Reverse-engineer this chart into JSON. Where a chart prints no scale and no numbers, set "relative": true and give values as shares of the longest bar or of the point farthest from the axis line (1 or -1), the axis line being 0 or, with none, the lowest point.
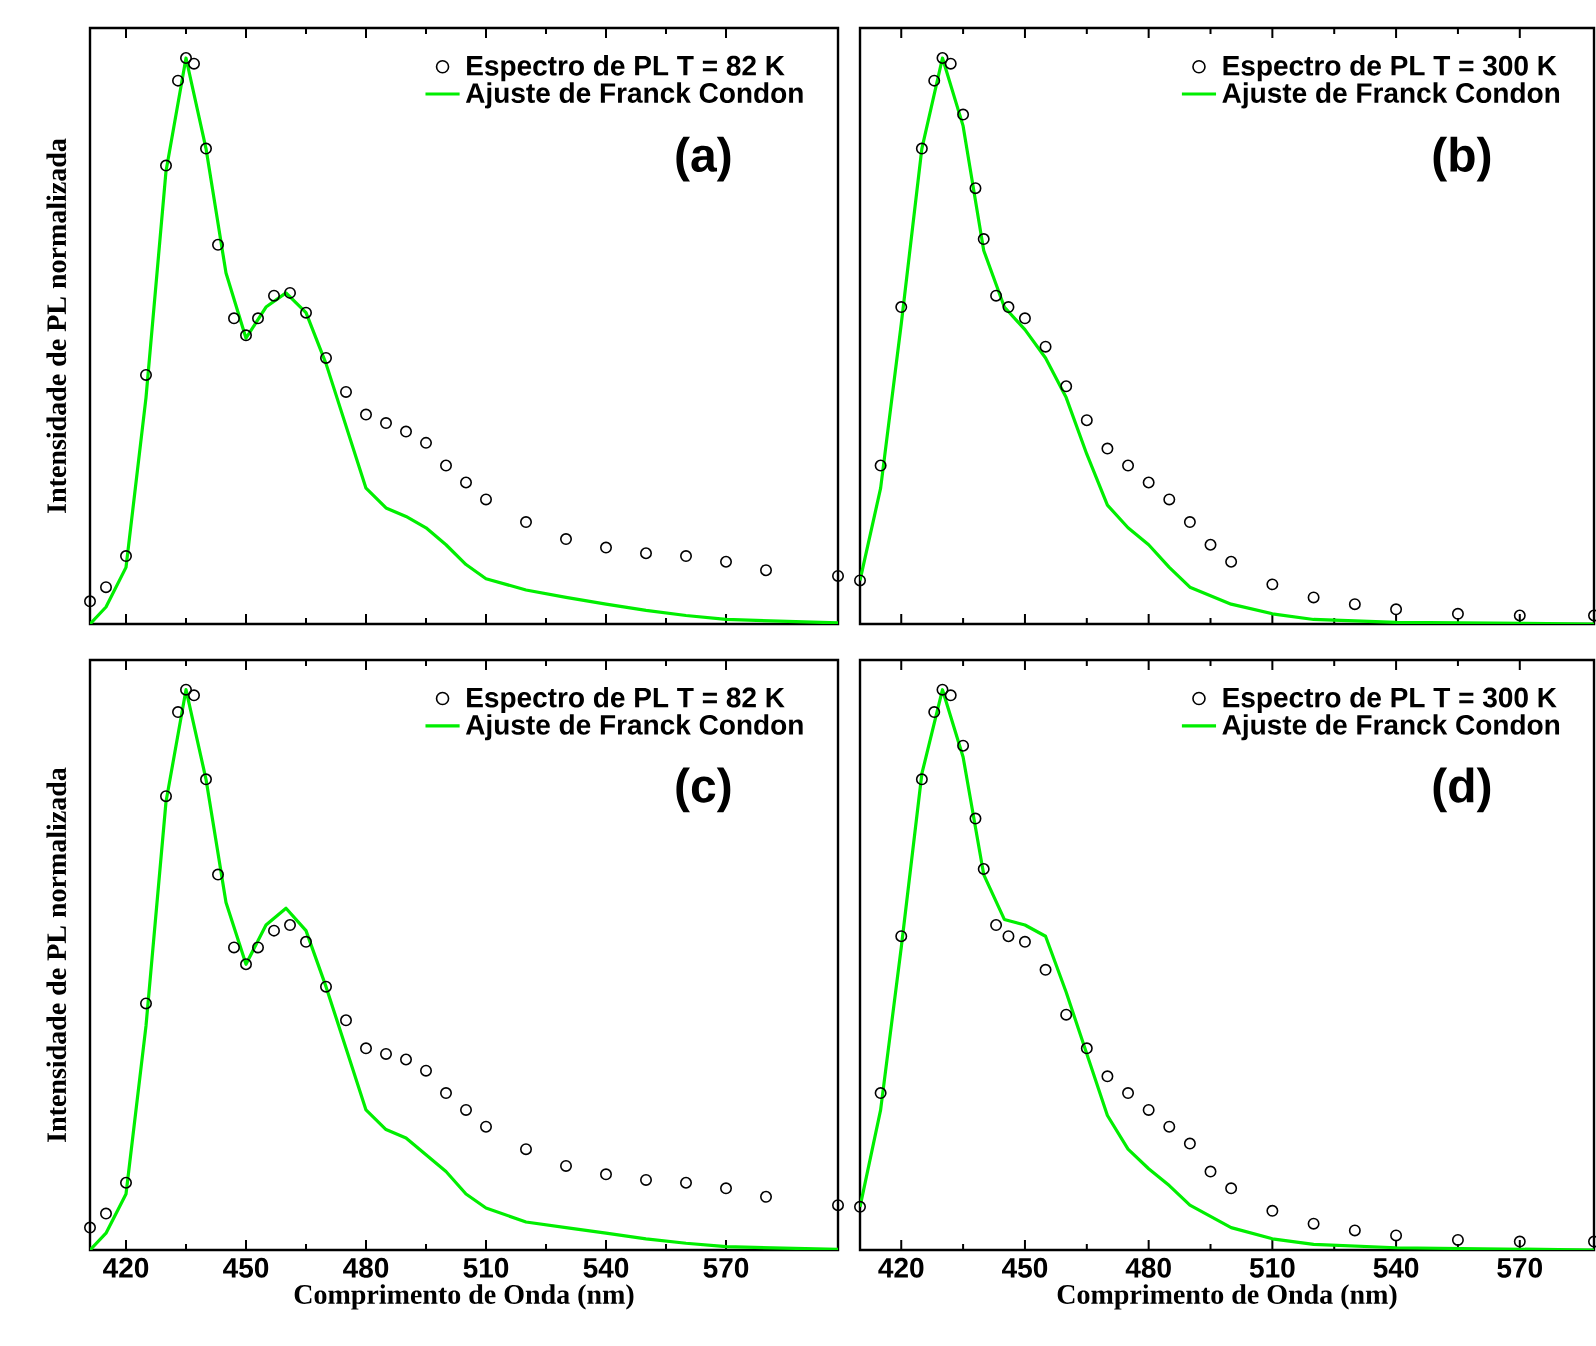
{
  "chart_data": [
    {
      "type": "line",
      "relative": true,
      "xlim": [
        411,
        598
      ],
      "xticks": [
        420,
        450,
        480,
        510,
        540,
        570
      ],
      "ylabel": "Intensidade de PL normalizada",
      "tick_labels": false,
      "legend": "top right",
      "annotations": [
        "(a)"
      ],
      "series": [
        {
          "name": "Espectro de PL  T = 82 K",
          "type": "scatter",
          "marker": "circle",
          "color": "#000000",
          "x": [
            411,
            415,
            420,
            425,
            430,
            433,
            435,
            437,
            440,
            443,
            447,
            450,
            453,
            457,
            461,
            465,
            470,
            475,
            480,
            485,
            490,
            495,
            500,
            505,
            510,
            520,
            530,
            540,
            550,
            560,
            570,
            580,
            598
          ],
          "values": [
            0.04,
            0.065,
            0.12,
            0.44,
            0.81,
            0.96,
            1.0,
            0.99,
            0.84,
            0.67,
            0.54,
            0.51,
            0.54,
            0.58,
            0.585,
            0.55,
            0.47,
            0.41,
            0.37,
            0.355,
            0.34,
            0.32,
            0.28,
            0.25,
            0.22,
            0.18,
            0.15,
            0.135,
            0.125,
            0.12,
            0.11,
            0.095,
            0.085
          ]
        },
        {
          "name": "Ajuste de Franck Condon",
          "type": "line",
          "color": "#00ee00",
          "x": [
            411,
            415,
            420,
            425,
            430,
            435,
            440,
            445,
            450,
            455,
            460,
            465,
            470,
            475,
            480,
            485,
            490,
            495,
            500,
            505,
            510,
            520,
            530,
            540,
            550,
            560,
            570,
            598
          ],
          "values": [
            0.0,
            0.03,
            0.1,
            0.4,
            0.8,
            1.0,
            0.84,
            0.62,
            0.505,
            0.56,
            0.585,
            0.55,
            0.46,
            0.35,
            0.24,
            0.205,
            0.19,
            0.17,
            0.14,
            0.105,
            0.08,
            0.06,
            0.047,
            0.035,
            0.024,
            0.015,
            0.008,
            0.002
          ]
        }
      ]
    },
    {
      "type": "line",
      "relative": true,
      "xlim": [
        410,
        588
      ],
      "xticks": [
        420,
        450,
        480,
        510,
        540,
        570
      ],
      "tick_labels": false,
      "legend": "top right",
      "annotations": [
        "(b)"
      ],
      "series": [
        {
          "name": "Espectro de PL  T = 300 K",
          "type": "scatter",
          "marker": "circle",
          "color": "#000000",
          "x": [
            410,
            415,
            420,
            425,
            428,
            430,
            432,
            435,
            438,
            440,
            443,
            446,
            450,
            455,
            460,
            465,
            470,
            475,
            480,
            485,
            490,
            495,
            500,
            510,
            520,
            530,
            540,
            555,
            570,
            588
          ],
          "values": [
            0.077,
            0.28,
            0.56,
            0.84,
            0.96,
            1.0,
            0.99,
            0.9,
            0.77,
            0.68,
            0.58,
            0.56,
            0.54,
            0.49,
            0.42,
            0.36,
            0.31,
            0.28,
            0.25,
            0.22,
            0.18,
            0.14,
            0.11,
            0.07,
            0.047,
            0.035,
            0.026,
            0.018,
            0.015,
            0.015
          ]
        },
        {
          "name": "Ajuste de Franck Condon",
          "type": "line",
          "color": "#00ee00",
          "x": [
            410,
            415,
            420,
            425,
            430,
            435,
            440,
            445,
            450,
            455,
            460,
            465,
            470,
            475,
            480,
            485,
            490,
            500,
            510,
            520,
            540,
            588
          ],
          "values": [
            0.077,
            0.24,
            0.53,
            0.84,
            1.0,
            0.88,
            0.66,
            0.56,
            0.52,
            0.47,
            0.4,
            0.3,
            0.21,
            0.17,
            0.14,
            0.1,
            0.065,
            0.035,
            0.018,
            0.008,
            0.003,
            0.0
          ]
        }
      ]
    },
    {
      "type": "line",
      "relative": true,
      "xlim": [
        411,
        598
      ],
      "xticks": [
        420,
        450,
        480,
        510,
        540,
        570
      ],
      "xlabel": "Comprimento de Onda (nm)",
      "ylabel": "Intensidade de PL normalizada",
      "tick_labels": "x",
      "legend": "top right",
      "annotations": [
        "(c)"
      ],
      "series": [
        {
          "name": "Espectro de PL  T = 82 K",
          "type": "scatter",
          "marker": "circle",
          "color": "#000000",
          "x": [
            411,
            415,
            420,
            425,
            430,
            433,
            435,
            437,
            440,
            443,
            447,
            450,
            453,
            457,
            461,
            465,
            470,
            475,
            480,
            485,
            490,
            495,
            500,
            505,
            510,
            520,
            530,
            540,
            550,
            560,
            570,
            580,
            598
          ],
          "values": [
            0.04,
            0.065,
            0.12,
            0.44,
            0.81,
            0.96,
            1.0,
            0.99,
            0.84,
            0.67,
            0.54,
            0.51,
            0.54,
            0.57,
            0.58,
            0.55,
            0.47,
            0.41,
            0.36,
            0.35,
            0.34,
            0.32,
            0.28,
            0.25,
            0.22,
            0.18,
            0.15,
            0.135,
            0.125,
            0.12,
            0.11,
            0.095,
            0.08
          ]
        },
        {
          "name": "Ajuste de Franck Condon",
          "type": "line",
          "color": "#00ee00",
          "x": [
            411,
            415,
            420,
            425,
            430,
            435,
            440,
            445,
            450,
            455,
            460,
            465,
            470,
            475,
            480,
            485,
            490,
            495,
            500,
            505,
            510,
            520,
            530,
            540,
            550,
            560,
            570,
            598
          ],
          "values": [
            0.0,
            0.03,
            0.1,
            0.4,
            0.8,
            1.0,
            0.84,
            0.62,
            0.51,
            0.58,
            0.61,
            0.57,
            0.47,
            0.36,
            0.25,
            0.215,
            0.2,
            0.17,
            0.14,
            0.1,
            0.075,
            0.05,
            0.04,
            0.03,
            0.02,
            0.012,
            0.006,
            0.001
          ]
        }
      ]
    },
    {
      "type": "line",
      "relative": true,
      "xlim": [
        410,
        588
      ],
      "xticks": [
        420,
        450,
        480,
        510,
        540,
        570
      ],
      "xlabel": "Comprimento de Onda (nm)",
      "tick_labels": "x",
      "legend": "top right",
      "annotations": [
        "(d)"
      ],
      "series": [
        {
          "name": "Espectro de PL  T = 300 K",
          "type": "scatter",
          "marker": "circle",
          "color": "#000000",
          "x": [
            410,
            415,
            420,
            425,
            428,
            430,
            432,
            435,
            438,
            440,
            443,
            446,
            450,
            455,
            460,
            465,
            470,
            475,
            480,
            485,
            490,
            495,
            500,
            510,
            520,
            530,
            540,
            555,
            570,
            588
          ],
          "values": [
            0.077,
            0.28,
            0.56,
            0.84,
            0.96,
            1.0,
            0.99,
            0.9,
            0.77,
            0.68,
            0.58,
            0.56,
            0.55,
            0.5,
            0.42,
            0.36,
            0.31,
            0.28,
            0.25,
            0.22,
            0.19,
            0.14,
            0.11,
            0.07,
            0.047,
            0.035,
            0.026,
            0.018,
            0.015,
            0.015
          ]
        },
        {
          "name": "Ajuste de Franck Condon",
          "type": "line",
          "color": "#00ee00",
          "x": [
            410,
            415,
            420,
            425,
            430,
            435,
            440,
            445,
            450,
            455,
            460,
            465,
            470,
            475,
            480,
            485,
            490,
            500,
            510,
            520,
            540,
            588
          ],
          "values": [
            0.077,
            0.25,
            0.54,
            0.85,
            1.0,
            0.88,
            0.67,
            0.59,
            0.58,
            0.56,
            0.46,
            0.35,
            0.24,
            0.18,
            0.145,
            0.115,
            0.08,
            0.04,
            0.02,
            0.01,
            0.004,
            0.0
          ]
        }
      ]
    }
  ]
}
